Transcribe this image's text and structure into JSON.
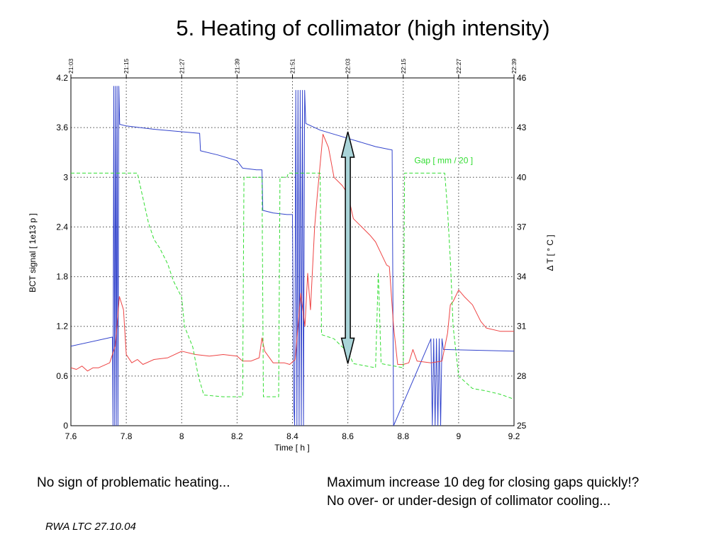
{
  "slide": {
    "title": "5. Heating of collimator (high intensity)",
    "note_left": "No sign of problematic heating...",
    "note_right_1": "Maximum increase 10 deg for closing gaps quickly!?",
    "note_right_2": "No over- or under-design of collimator cooling...",
    "footer": "RWA LTC 27.10.04"
  },
  "chart_data": {
    "type": "line",
    "xlabel": "Time [ h ]",
    "ylabel": "BCT signal [ 1e13 p ]",
    "y2label": "Δ T [ ° C ]",
    "xlim": [
      7.6,
      9.2
    ],
    "ylim": [
      0,
      4.2
    ],
    "y2lim": [
      25,
      46
    ],
    "x_ticks": [
      "7.6",
      "7.8",
      "8",
      "8.2",
      "8.4",
      "8.6",
      "8.8",
      "9",
      "9.2"
    ],
    "y_ticks": [
      "0",
      "0.6",
      "1.2",
      "1.8",
      "2.4",
      "3",
      "3.6",
      "4.2"
    ],
    "y2_ticks": [
      "25",
      "28",
      "31",
      "34",
      "37",
      "40",
      "43",
      "46"
    ],
    "top_ticks": [
      "21:03",
      "21:15",
      "21:27",
      "21:39",
      "21:51",
      "22:03",
      "22:15",
      "22:27",
      "22:39"
    ],
    "grid": true,
    "colors": {
      "bct": "#3344cc",
      "temperature": "#ee4444",
      "gap": "#33dd33",
      "arrow_fill": "#a9d4d8"
    },
    "annotation": {
      "text": "Gap [ mm / 20 ]",
      "x": 8.84,
      "y": 3.17
    },
    "arrow": {
      "x": 8.6,
      "y_from": 0.75,
      "y_to": 3.55
    },
    "series": [
      {
        "id": "bct",
        "axis": "left",
        "style": "solid",
        "points": [
          [
            7.6,
            0.96
          ],
          [
            7.75,
            1.07
          ],
          [
            7.752,
            0
          ],
          [
            7.755,
            4.1
          ],
          [
            7.758,
            0
          ],
          [
            7.761,
            4.1
          ],
          [
            7.764,
            0
          ],
          [
            7.767,
            4.1
          ],
          [
            7.77,
            0
          ],
          [
            7.773,
            4.1
          ],
          [
            7.776,
            3.64
          ],
          [
            7.8,
            3.62
          ],
          [
            7.9,
            3.58
          ],
          [
            8.0,
            3.55
          ],
          [
            8.065,
            3.53
          ],
          [
            8.068,
            3.32
          ],
          [
            8.13,
            3.27
          ],
          [
            8.2,
            3.2
          ],
          [
            8.22,
            3.11
          ],
          [
            8.27,
            3.09
          ],
          [
            8.29,
            3.09
          ],
          [
            8.293,
            2.6
          ],
          [
            8.33,
            2.57
          ],
          [
            8.38,
            2.55
          ],
          [
            8.4,
            2.55
          ],
          [
            8.405,
            0.2
          ],
          [
            8.408,
            0
          ],
          [
            8.412,
            4.05
          ],
          [
            8.416,
            0
          ],
          [
            8.42,
            4.05
          ],
          [
            8.424,
            0
          ],
          [
            8.428,
            4.05
          ],
          [
            8.432,
            0
          ],
          [
            8.436,
            4.05
          ],
          [
            8.44,
            0
          ],
          [
            8.444,
            4.05
          ],
          [
            8.448,
            3.65
          ],
          [
            8.5,
            3.57
          ],
          [
            8.6,
            3.47
          ],
          [
            8.7,
            3.37
          ],
          [
            8.76,
            3.33
          ],
          [
            8.765,
            0
          ],
          [
            8.9,
            1.05
          ],
          [
            8.905,
            0
          ],
          [
            8.91,
            1.05
          ],
          [
            8.915,
            0
          ],
          [
            8.92,
            1.05
          ],
          [
            8.925,
            0
          ],
          [
            8.93,
            1.05
          ],
          [
            8.935,
            0
          ],
          [
            8.94,
            1.05
          ],
          [
            8.945,
            0.92
          ],
          [
            9.2,
            0.9
          ]
        ]
      },
      {
        "id": "temperature",
        "axis": "right",
        "style": "solid",
        "points": [
          [
            7.6,
            28.5
          ],
          [
            7.62,
            28.4
          ],
          [
            7.64,
            28.6
          ],
          [
            7.66,
            28.3
          ],
          [
            7.68,
            28.5
          ],
          [
            7.7,
            28.5
          ],
          [
            7.74,
            28.8
          ],
          [
            7.76,
            29.8
          ],
          [
            7.775,
            32.8
          ],
          [
            7.79,
            32.0
          ],
          [
            7.8,
            29.3
          ],
          [
            7.82,
            28.8
          ],
          [
            7.84,
            29.0
          ],
          [
            7.86,
            28.7
          ],
          [
            7.9,
            29.0
          ],
          [
            7.95,
            29.1
          ],
          [
            8.0,
            29.5
          ],
          [
            8.05,
            29.3
          ],
          [
            8.1,
            29.2
          ],
          [
            8.15,
            29.3
          ],
          [
            8.2,
            29.2
          ],
          [
            8.22,
            28.9
          ],
          [
            8.25,
            28.9
          ],
          [
            8.28,
            29.1
          ],
          [
            8.29,
            30.3
          ],
          [
            8.3,
            29.5
          ],
          [
            8.33,
            28.8
          ],
          [
            8.37,
            28.8
          ],
          [
            8.39,
            28.7
          ],
          [
            8.41,
            29.0
          ],
          [
            8.43,
            33.0
          ],
          [
            8.445,
            31.0
          ],
          [
            8.455,
            34.2
          ],
          [
            8.465,
            32.0
          ],
          [
            8.48,
            37.0
          ],
          [
            8.49,
            39.0
          ],
          [
            8.51,
            42.6
          ],
          [
            8.53,
            41.8
          ],
          [
            8.55,
            40.0
          ],
          [
            8.58,
            39.5
          ],
          [
            8.6,
            39.0
          ],
          [
            8.62,
            37.5
          ],
          [
            8.65,
            37.0
          ],
          [
            8.68,
            36.5
          ],
          [
            8.7,
            36.1
          ],
          [
            8.72,
            35.4
          ],
          [
            8.74,
            34.7
          ],
          [
            8.75,
            34.6
          ],
          [
            8.765,
            31.0
          ],
          [
            8.78,
            28.7
          ],
          [
            8.8,
            28.7
          ],
          [
            8.82,
            28.8
          ],
          [
            8.835,
            29.6
          ],
          [
            8.85,
            28.9
          ],
          [
            8.9,
            28.8
          ],
          [
            8.94,
            28.9
          ],
          [
            8.96,
            30.6
          ],
          [
            8.97,
            32.3
          ],
          [
            8.98,
            32.5
          ],
          [
            9.0,
            33.2
          ],
          [
            9.02,
            32.8
          ],
          [
            9.05,
            32.3
          ],
          [
            9.08,
            31.3
          ],
          [
            9.1,
            30.9
          ],
          [
            9.15,
            30.7
          ],
          [
            9.2,
            30.7
          ]
        ]
      },
      {
        "id": "gap",
        "axis": "left",
        "style": "dashed",
        "points": [
          [
            7.6,
            3.05
          ],
          [
            7.84,
            3.05
          ],
          [
            7.86,
            2.75
          ],
          [
            7.88,
            2.45
          ],
          [
            7.9,
            2.25
          ],
          [
            7.92,
            2.15
          ],
          [
            7.95,
            1.95
          ],
          [
            7.97,
            1.75
          ],
          [
            8.0,
            1.55
          ],
          [
            8.01,
            1.2
          ],
          [
            8.04,
            0.95
          ],
          [
            8.06,
            0.6
          ],
          [
            8.08,
            0.37
          ],
          [
            8.15,
            0.35
          ],
          [
            8.2,
            0.35
          ],
          [
            8.22,
            0.35
          ],
          [
            8.225,
            3.0
          ],
          [
            8.29,
            3.0
          ],
          [
            8.295,
            0.35
          ],
          [
            8.35,
            0.35
          ],
          [
            8.355,
            3.0
          ],
          [
            8.38,
            3.0
          ],
          [
            8.385,
            3.05
          ],
          [
            8.5,
            3.05
          ],
          [
            8.505,
            1.1
          ],
          [
            8.55,
            1.05
          ],
          [
            8.58,
            0.95
          ],
          [
            8.6,
            0.9
          ],
          [
            8.62,
            0.75
          ],
          [
            8.7,
            0.7
          ],
          [
            8.71,
            1.85
          ],
          [
            8.72,
            0.75
          ],
          [
            8.8,
            0.7
          ],
          [
            8.805,
            3.05
          ],
          [
            8.87,
            3.05
          ],
          [
            8.88,
            3.05
          ],
          [
            8.95,
            3.05
          ],
          [
            8.96,
            2.6
          ],
          [
            8.97,
            2.0
          ],
          [
            8.98,
            1.2
          ],
          [
            9.0,
            0.6
          ],
          [
            9.05,
            0.45
          ],
          [
            9.1,
            0.42
          ],
          [
            9.15,
            0.38
          ],
          [
            9.2,
            0.32
          ]
        ]
      }
    ]
  }
}
